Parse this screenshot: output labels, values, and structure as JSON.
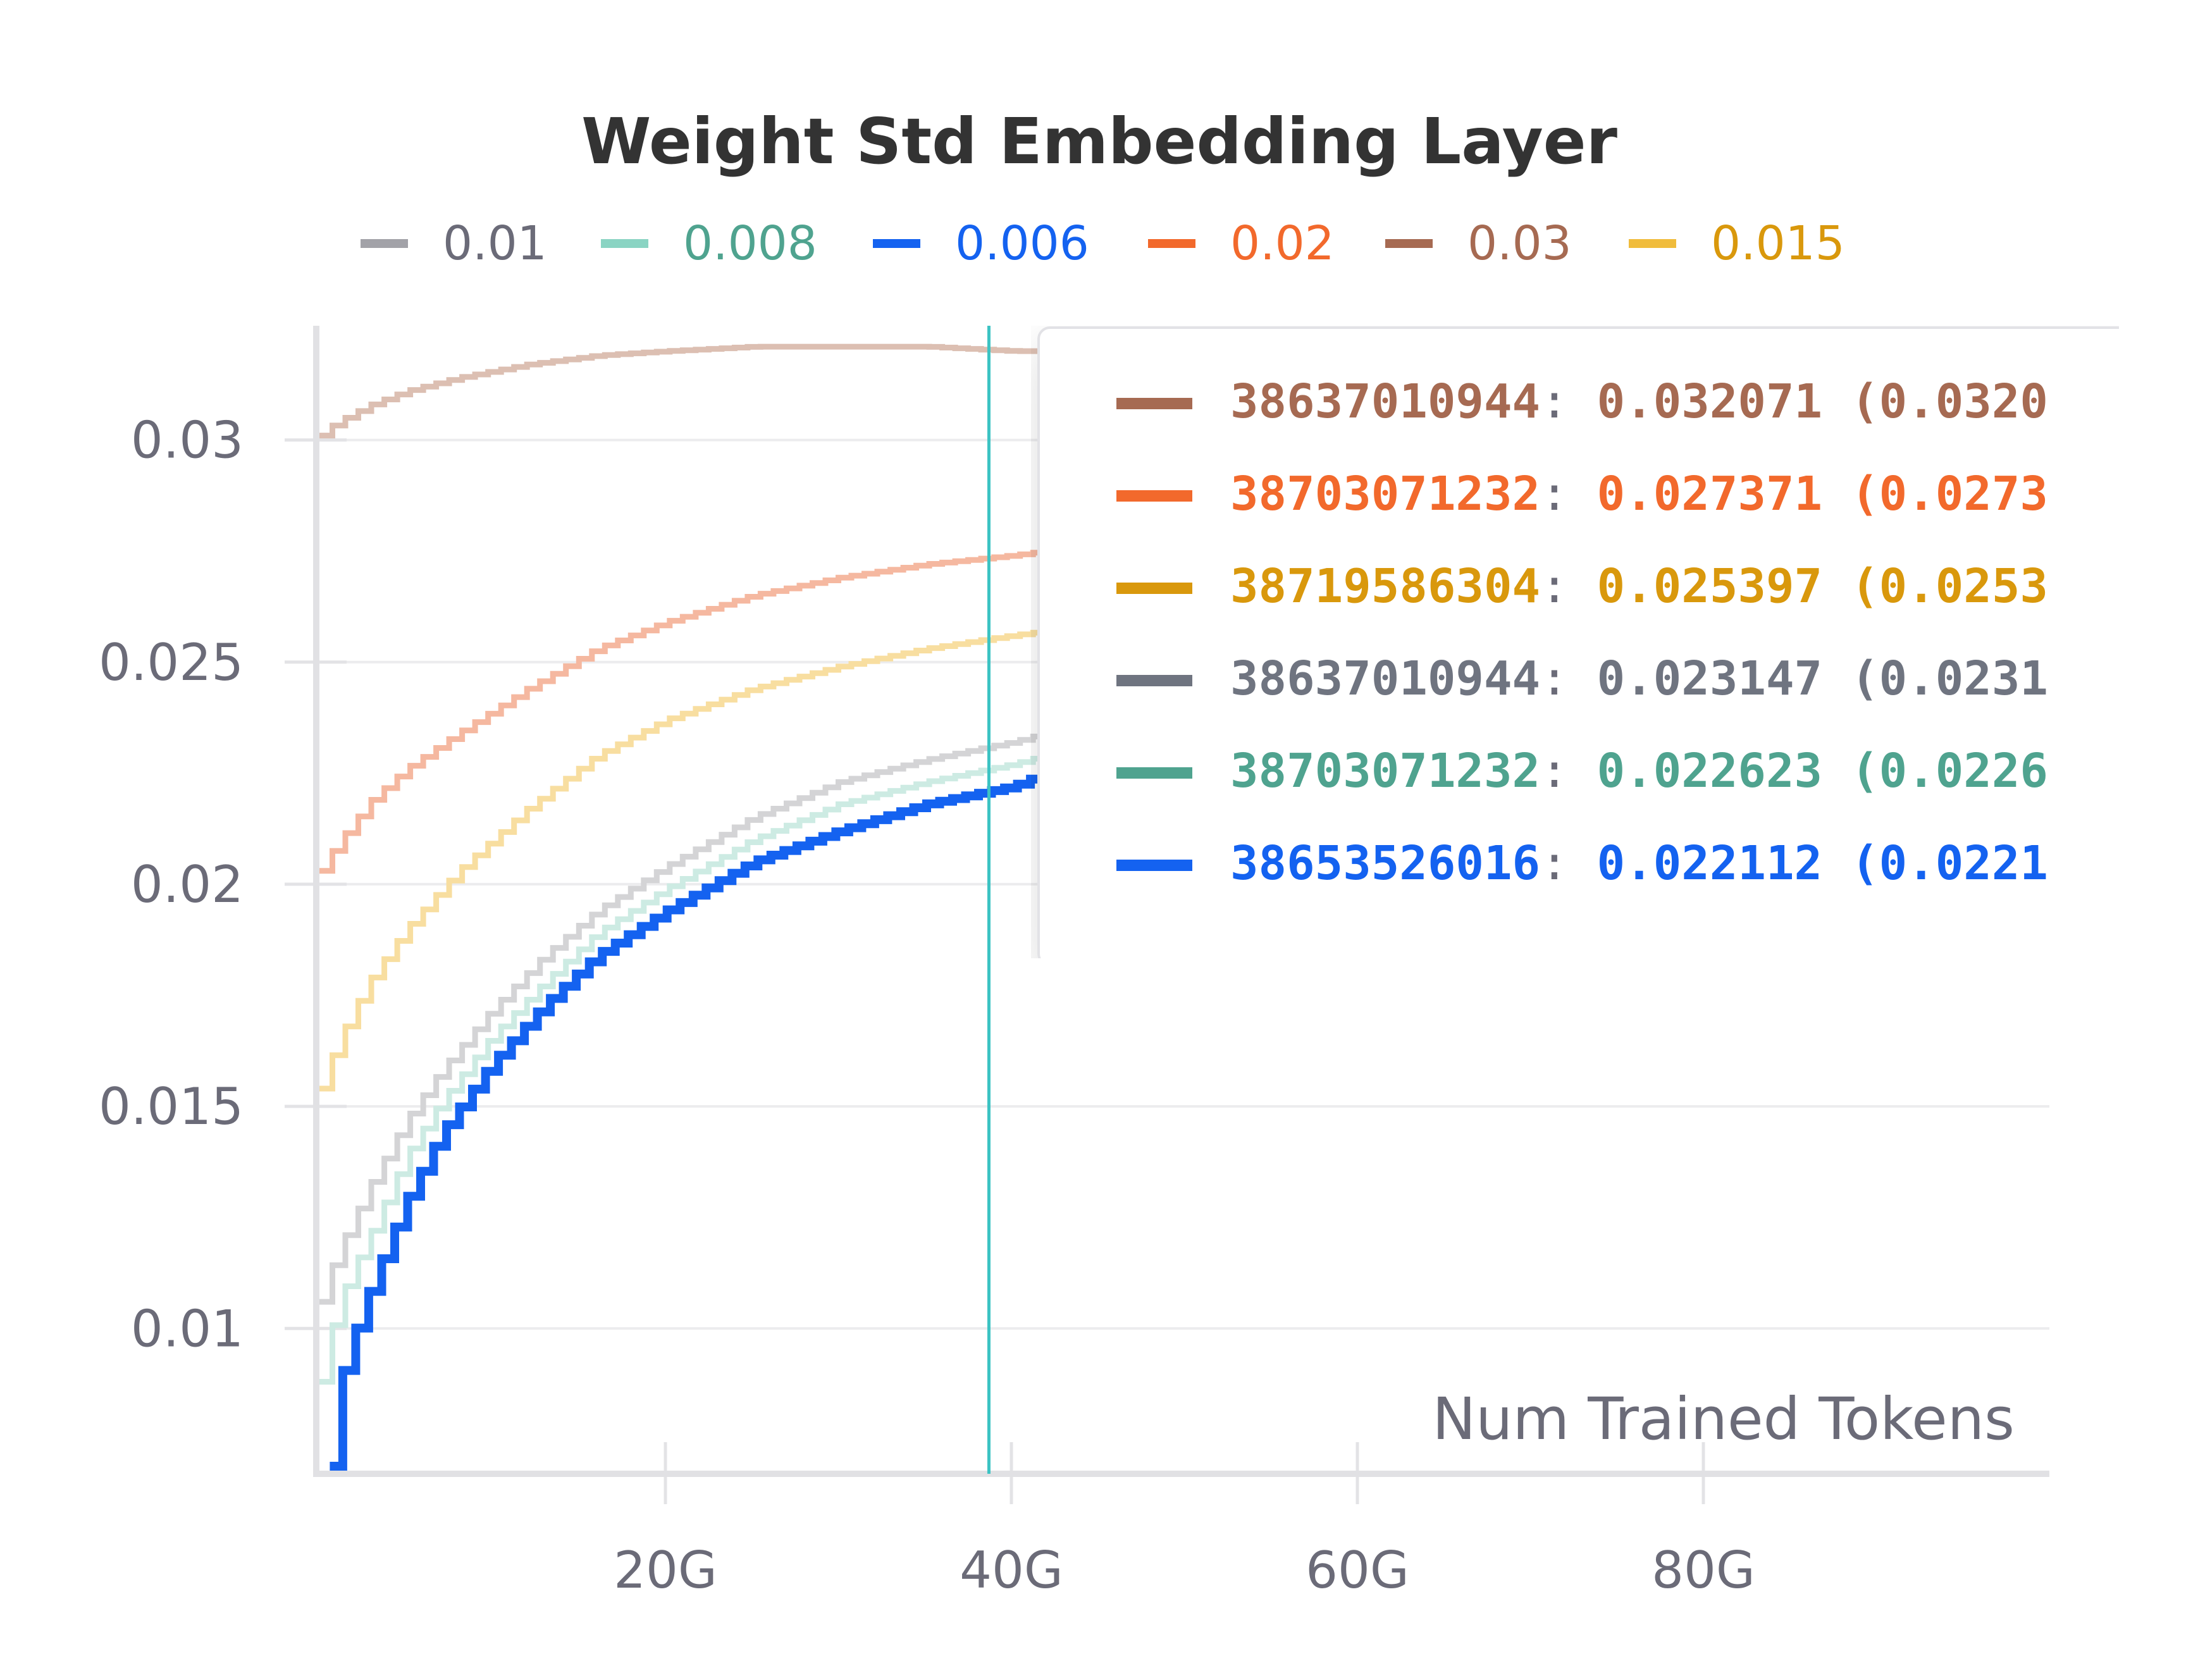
{
  "chart_data": {
    "type": "line",
    "title": "Weight Std Embedding Layer",
    "xlabel": "Num Trained Tokens",
    "ylabel": "",
    "xlim": [
      0,
      100000000000
    ],
    "ylim": [
      0.0068,
      0.0325
    ],
    "x_ticks": [
      {
        "value": 20000000000,
        "label": "20G"
      },
      {
        "value": 40000000000,
        "label": "40G"
      },
      {
        "value": 60000000000,
        "label": "60G"
      },
      {
        "value": 80000000000,
        "label": "80G"
      }
    ],
    "y_ticks": [
      {
        "value": 0.01,
        "label": "0.01"
      },
      {
        "value": 0.015,
        "label": "0.015"
      },
      {
        "value": 0.02,
        "label": "0.02"
      },
      {
        "value": 0.025,
        "label": "0.025"
      },
      {
        "value": 0.03,
        "label": "0.03"
      }
    ],
    "grid": true,
    "legend_position": "top",
    "hover_x": 38700000000,
    "series": [
      {
        "name": "0.01",
        "color": "#a2a2a8",
        "legend_text_color": "#6b6b78",
        "plot_color": "#d4d4d6",
        "x": [
          0,
          1000000000.0,
          2000000000.0,
          3000000000.0,
          5000000000.0,
          7000000000.0,
          10000000000.0,
          13000000000.0,
          16000000000.0,
          20000000000.0,
          25000000000.0,
          30000000000.0,
          35000000000.0,
          40000000000.0,
          42000000000.0
        ],
        "y": [
          0.0106,
          0.0117,
          0.0125,
          0.0133,
          0.0147,
          0.0158,
          0.0172,
          0.0184,
          0.0194,
          0.0204,
          0.0215,
          0.0223,
          0.0228,
          0.0232,
          0.0234
        ]
      },
      {
        "name": "0.008",
        "color": "#8ad4c3",
        "legend_text_color": "#4fa38f",
        "plot_color": "#cdebe3",
        "x": [
          0,
          1000000000.0,
          2000000000.0,
          3000000000.0,
          5000000000.0,
          7000000000.0,
          10000000000.0,
          13000000000.0,
          16000000000.0,
          20000000000.0,
          25000000000.0,
          30000000000.0,
          35000000000.0,
          40000000000.0,
          42000000000.0
        ],
        "y": [
          0.0088,
          0.0105,
          0.0114,
          0.0122,
          0.0139,
          0.0151,
          0.0166,
          0.0178,
          0.0189,
          0.0199,
          0.021,
          0.0218,
          0.0223,
          0.0227,
          0.0229
        ]
      },
      {
        "name": "0.006",
        "color": "#1462f0",
        "legend_text_color": "#1462f0",
        "plot_color": "#1462f0",
        "x": [
          600000000.0,
          1000000000.0,
          2000000000.0,
          3000000000.0,
          5000000000.0,
          7000000000.0,
          10000000000.0,
          13000000000.0,
          16000000000.0,
          20000000000.0,
          25000000000.0,
          30000000000.0,
          35000000000.0,
          40000000000.0,
          42000000000.0
        ],
        "y": [
          0.0069,
          0.0086,
          0.0099,
          0.011,
          0.0129,
          0.0144,
          0.016,
          0.0173,
          0.0184,
          0.0194,
          0.0205,
          0.0212,
          0.0218,
          0.0222,
          0.0225
        ]
      },
      {
        "name": "0.02",
        "color": "#f2692c",
        "legend_text_color": "#f2692c",
        "plot_color": "#f5b8a0",
        "x": [
          0,
          1000000000.0,
          2000000000.0,
          3000000000.0,
          5000000000.0,
          8000000000.0,
          12000000000.0,
          16000000000.0,
          20000000000.0,
          25000000000.0,
          30000000000.0,
          35000000000.0,
          40000000000.0,
          42000000000.0
        ],
        "y": [
          0.0203,
          0.0209,
          0.0214,
          0.0219,
          0.0226,
          0.0234,
          0.0244,
          0.0253,
          0.0259,
          0.0265,
          0.0269,
          0.0272,
          0.0274,
          0.0275
        ]
      },
      {
        "name": "0.03",
        "color": "#a66a52",
        "legend_text_color": "#a66a52",
        "plot_color": "#dcbfb2",
        "x": [
          0,
          1000000000.0,
          2000000000.0,
          3000000000.0,
          5000000000.0,
          8000000000.0,
          12000000000.0,
          16000000000.0,
          20000000000.0,
          25000000000.0,
          30000000000.0,
          35000000000.0,
          40000000000.0,
          42000000000.0
        ],
        "y": [
          0.0301,
          0.0304,
          0.0306,
          0.0308,
          0.0311,
          0.0314,
          0.0317,
          0.0319,
          0.032,
          0.0321,
          0.0321,
          0.0321,
          0.032,
          0.032
        ]
      },
      {
        "name": "0.015",
        "color": "#f0bc3c",
        "legend_text_color": "#d9980c",
        "plot_color": "#f8dea0",
        "x": [
          0,
          1000000000.0,
          2000000000.0,
          3000000000.0,
          5000000000.0,
          8000000000.0,
          12000000000.0,
          16000000000.0,
          20000000000.0,
          25000000000.0,
          30000000000.0,
          35000000000.0,
          40000000000.0,
          42000000000.0
        ],
        "y": [
          0.0154,
          0.0164,
          0.0172,
          0.0179,
          0.019,
          0.0203,
          0.0217,
          0.0229,
          0.0237,
          0.0244,
          0.0249,
          0.0253,
          0.0256,
          0.0257
        ]
      }
    ]
  },
  "tooltip": {
    "rows": [
      {
        "step": "38637010944",
        "colon": ":",
        "value": "0.032071",
        "extra": "(0.0320",
        "color": "#a66a52"
      },
      {
        "step": "38703071232",
        "colon": ":",
        "value": "0.027371",
        "extra": "(0.0273",
        "color": "#f2692c"
      },
      {
        "step": "38719586304",
        "colon": ":",
        "value": "0.025397",
        "extra": "(0.0253",
        "color": "#d9980c"
      },
      {
        "step": "38637010944",
        "colon": ":",
        "value": "0.023147",
        "extra": "(0.0231",
        "color": "#6f7480"
      },
      {
        "step": "38703071232",
        "colon": ":",
        "value": "0.022623",
        "extra": "(0.0226",
        "color": "#4fa38f"
      },
      {
        "step": "38653526016",
        "colon": ":",
        "value": "0.022112",
        "extra": "(0.0221",
        "color": "#1462f0"
      }
    ]
  }
}
